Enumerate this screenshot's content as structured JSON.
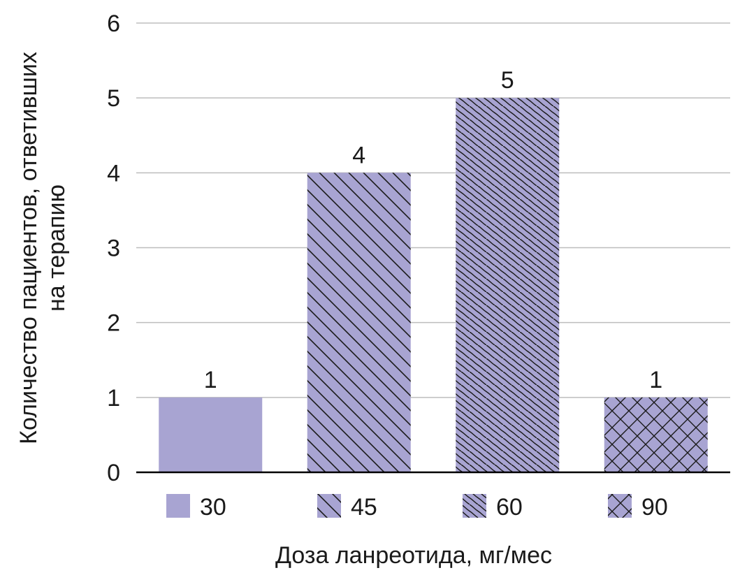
{
  "chart_data": {
    "type": "bar",
    "categories": [
      "30",
      "45",
      "60",
      "90"
    ],
    "values": [
      1,
      4,
      5,
      1
    ],
    "data_labels": [
      "1",
      "4",
      "5",
      "1"
    ],
    "patterns": [
      "solid",
      "diagonal",
      "wavy",
      "crosshatch"
    ],
    "xlabel": "Доза ланреотида, мг/мес",
    "ylabel_lines": [
      "Количество пациентов, ответивших",
      "на терапию"
    ],
    "ylim": [
      0,
      6
    ],
    "yticks": [
      "0",
      "1",
      "2",
      "3",
      "4",
      "5",
      "6"
    ],
    "legend": [
      "30",
      "45",
      "60",
      "90"
    ],
    "legend_position": "bottom",
    "grid": true,
    "colors": {
      "bar_fill": "#a8a4d2",
      "pattern_stroke": "#1a1a1a",
      "grid": "#bdbdbd",
      "axis": "#000000"
    }
  }
}
